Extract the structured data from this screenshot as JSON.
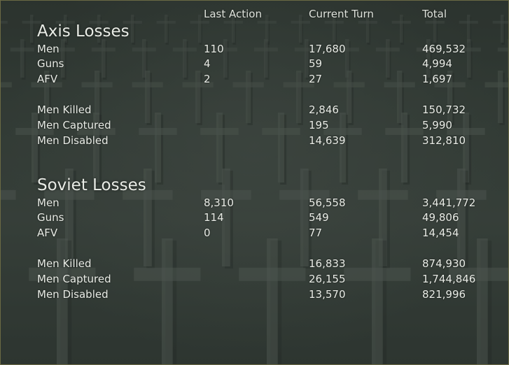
{
  "columns": {
    "last_action": "Last Action",
    "current_turn": "Current Turn",
    "total": "Total"
  },
  "axis": {
    "title": "Axis Losses",
    "rows": [
      {
        "label": "Men",
        "last_action": "110",
        "current_turn": "17,680",
        "total": "469,532"
      },
      {
        "label": "Guns",
        "last_action": "4",
        "current_turn": "59",
        "total": "4,994"
      },
      {
        "label": "AFV",
        "last_action": "2",
        "current_turn": "27",
        "total": "1,697"
      }
    ],
    "breakdown": [
      {
        "label": "Men Killed",
        "current_turn": "2,846",
        "total": "150,732"
      },
      {
        "label": "Men Captured",
        "current_turn": "195",
        "total": "5,990"
      },
      {
        "label": "Men Disabled",
        "current_turn": "14,639",
        "total": "312,810"
      }
    ]
  },
  "soviet": {
    "title": "Soviet Losses",
    "rows": [
      {
        "label": "Men",
        "last_action": "8,310",
        "current_turn": "56,558",
        "total": "3,441,772"
      },
      {
        "label": "Guns",
        "last_action": "114",
        "current_turn": "549",
        "total": "49,806"
      },
      {
        "label": "AFV",
        "last_action": "0",
        "current_turn": "77",
        "total": "14,454"
      }
    ],
    "breakdown": [
      {
        "label": "Men Killed",
        "current_turn": "16,833",
        "total": "874,930"
      },
      {
        "label": "Men Captured",
        "current_turn": "26,155",
        "total": "1,744,846"
      },
      {
        "label": "Men Disabled",
        "current_turn": "13,570",
        "total": "821,996"
      }
    ]
  }
}
